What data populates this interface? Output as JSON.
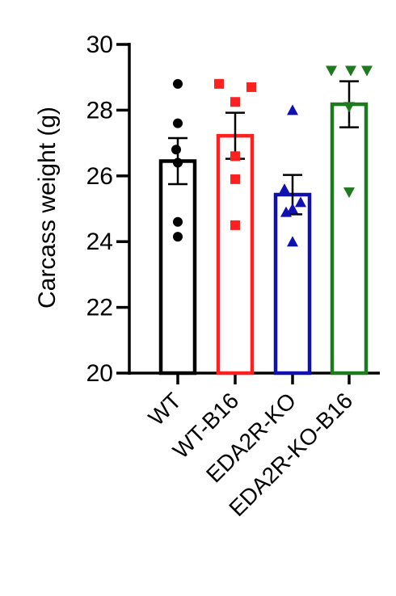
{
  "chart_data": {
    "type": "bar",
    "ylabel": "Carcass weight (g)",
    "ylim": [
      20,
      30
    ],
    "yticks": [
      "20",
      "22",
      "24",
      "26",
      "28",
      "30"
    ],
    "groups": [
      {
        "category": "WT",
        "color": "#000000",
        "marker": "circle",
        "mean": 26.45,
        "sem": 0.7,
        "points": [
          28.8,
          27.6,
          26.8,
          26.4,
          24.6,
          24.15
        ]
      },
      {
        "category": "WT-B16",
        "color": "#ff2020",
        "marker": "square",
        "mean": 27.22,
        "sem": 0.7,
        "points": [
          28.8,
          28.7,
          28.25,
          26.6,
          25.9,
          24.5
        ]
      },
      {
        "category": "EDA2R-KO",
        "color": "#1010b0",
        "marker": "triangle-up",
        "mean": 25.43,
        "sem": 0.6,
        "points": [
          28.0,
          25.6,
          25.2,
          25.0,
          24.9,
          24.0
        ]
      },
      {
        "category": "EDA2R-KO-B16",
        "color": "#1e7a1e",
        "marker": "triangle-down",
        "mean": 28.18,
        "sem": 0.7,
        "points": [
          29.2,
          29.2,
          29.2,
          28.1,
          25.5
        ]
      }
    ]
  }
}
